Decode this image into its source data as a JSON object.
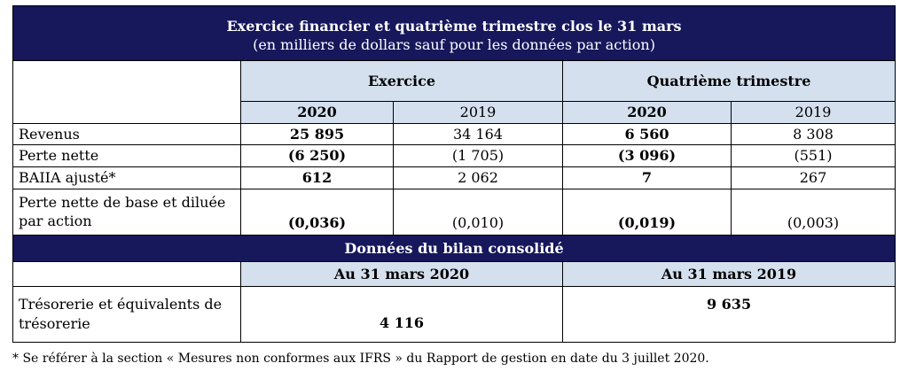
{
  "header": {
    "title": "Exercice financier et quatrième trimestre clos le 31 mars",
    "subtitle": "(en milliers de dollars sauf pour les données par action)"
  },
  "groups": {
    "exercice": "Exercice",
    "quatrieme": "Quatrième trimestre"
  },
  "years": {
    "ex_2020": "2020",
    "ex_2019": "2019",
    "q4_2020": "2020",
    "q4_2019": "2019"
  },
  "rows": [
    {
      "label": "Revenus",
      "ex2020": "25 895",
      "ex2019": "34 164",
      "q42020": "6 560",
      "q42019": "8 308"
    },
    {
      "label": "Perte nette",
      "ex2020": "(6 250)",
      "ex2019": "(1 705)",
      "q42020": "(3 096)",
      "q42019": "(551)"
    },
    {
      "label": "BAIIA ajusté*",
      "ex2020": "612",
      "ex2019": "2 062",
      "q42020": "7",
      "q42019": "267"
    },
    {
      "label": "Perte nette de base et diluée par action",
      "ex2020": "(0,036)",
      "ex2019": "(0,010)",
      "q42020": "(0,019)",
      "q42019": "(0,003)"
    }
  ],
  "bilan": {
    "title": "Données du bilan consolidé",
    "col_2020": "Au 31 mars 2020",
    "col_2019": "Au 31 mars 2019",
    "row_label": "Trésorerie et équivalents de trésorerie",
    "val_2020": "4 116",
    "val_2019": "9 635"
  },
  "footnote": "*  Se référer à la section « Mesures non conformes aux IFRS » du Rapport de gestion en date du 3 juillet 2020."
}
